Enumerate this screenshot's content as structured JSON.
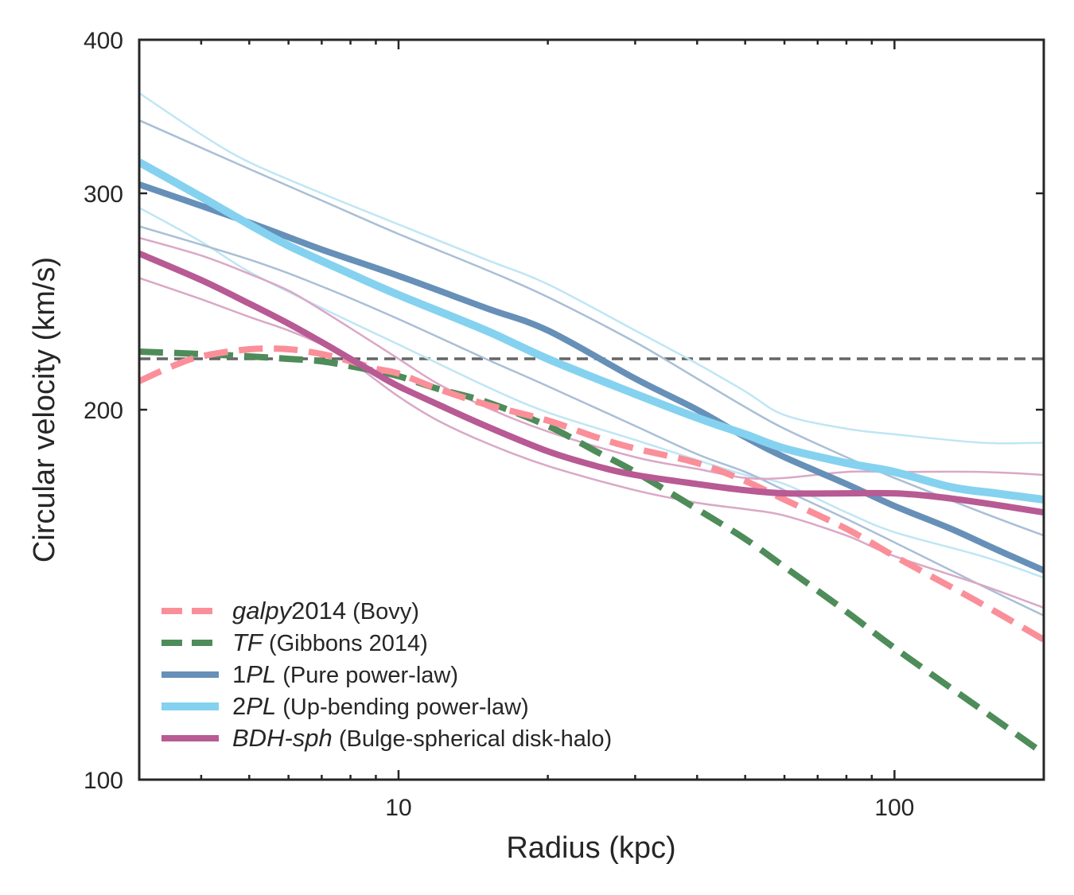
{
  "chart_data": {
    "type": "line",
    "title": "",
    "xlabel": "Radius (kpc)",
    "ylabel": "Circular velocity (km/s)",
    "xscale": "log",
    "yscale": "log",
    "xlim": [
      3,
      200
    ],
    "ylim": [
      100,
      400
    ],
    "x_ticks": [
      {
        "value": 10,
        "label": "10"
      },
      {
        "value": 100,
        "label": "100"
      }
    ],
    "y_ticks": [
      {
        "value": 100,
        "label": "100"
      },
      {
        "value": 200,
        "label": "200"
      },
      {
        "value": 300,
        "label": "300"
      },
      {
        "value": 400,
        "label": "400"
      }
    ],
    "grid": false,
    "legend_position": "lower-left",
    "reference_line": {
      "type": "horizontal",
      "y": 220,
      "color": "#666666",
      "style": "dashed"
    },
    "series": [
      {
        "name": "galpy2014",
        "legend_italic": "galpy",
        "legend_plain": "2014",
        "legend_note": "(Bovy)",
        "color": "#fa8f9a",
        "style": "dashed",
        "width": 8,
        "opacity": 1,
        "in_legend": true,
        "x": [
          3,
          3.5,
          4,
          5,
          6,
          7,
          8,
          9,
          10,
          12,
          15,
          20,
          25,
          30,
          40,
          50,
          60,
          80,
          100,
          120,
          150,
          200
        ],
        "y": [
          211,
          217,
          221,
          224,
          224,
          222,
          219,
          216,
          214,
          208,
          202,
          196,
          190,
          186,
          181,
          175,
          169,
          160,
          152,
          146,
          139,
          130
        ]
      },
      {
        "name": "TF",
        "legend_italic": "TF",
        "legend_plain": "",
        "legend_note": "(Gibbons 2014)",
        "color": "#4e8c5a",
        "style": "dashed",
        "width": 8,
        "opacity": 1,
        "in_legend": true,
        "x": [
          3,
          4,
          5,
          6,
          7,
          8,
          9,
          10,
          12,
          15,
          20,
          25,
          30,
          40,
          50,
          60,
          80,
          100,
          150,
          200
        ],
        "y": [
          223,
          222,
          221,
          220,
          219,
          217,
          215,
          213,
          208,
          203,
          194,
          185,
          178,
          166,
          157,
          149,
          137,
          128,
          114,
          105
        ]
      },
      {
        "name": "1PL",
        "legend_italic": "PL",
        "legend_plain": "1",
        "legend_note": "(Pure power-law)",
        "color": "#6690b8",
        "style": "solid",
        "width": 8,
        "opacity": 1,
        "in_legend": true,
        "x": [
          3,
          5,
          7,
          10,
          15,
          20,
          30,
          40,
          50,
          60,
          80,
          100,
          130,
          160,
          200
        ],
        "y": [
          305,
          284,
          270,
          257,
          242,
          232,
          212,
          200,
          190,
          183,
          174,
          167,
          160,
          154,
          148
        ]
      },
      {
        "name": "2PL",
        "legend_italic": "PL",
        "legend_plain": "2",
        "legend_note": "(Up-bending power-law)",
        "color": "#84d2ef",
        "style": "solid",
        "width": 10,
        "opacity": 1,
        "in_legend": true,
        "x": [
          3,
          4,
          5,
          6,
          8,
          10,
          15,
          20,
          30,
          40,
          50,
          60,
          80,
          100,
          130,
          160,
          200
        ],
        "y": [
          318,
          298,
          283,
          272,
          258,
          248,
          232,
          220,
          206,
          197,
          191,
          186,
          181,
          178,
          173,
          171,
          169
        ]
      },
      {
        "name": "BDH-sph",
        "legend_italic": "BDH-sph",
        "legend_plain": "",
        "legend_note": "(Bulge-spherical disk-halo)",
        "color": "#b85a94",
        "style": "solid",
        "width": 8,
        "opacity": 1,
        "in_legend": true,
        "x": [
          3,
          4,
          5,
          6,
          7,
          8,
          9,
          10,
          12,
          15,
          20,
          25,
          30,
          40,
          50,
          60,
          80,
          100,
          120,
          150,
          200
        ],
        "y": [
          268,
          255,
          244,
          235,
          227,
          220,
          214,
          209,
          202,
          194,
          185,
          180,
          177,
          174,
          172,
          171,
          171,
          171,
          170,
          168,
          165
        ]
      },
      {
        "name": "light-cyan-upper",
        "color": "#bfe6f4",
        "style": "solid",
        "width": 2.5,
        "opacity": 1,
        "in_legend": false,
        "x": [
          3,
          4,
          5,
          7,
          10,
          15,
          20,
          30,
          40,
          50,
          60,
          80,
          100,
          150,
          200
        ],
        "y": [
          362,
          335,
          318,
          300,
          283,
          265,
          253,
          232,
          218,
          207,
          198,
          193,
          191,
          188,
          188
        ]
      },
      {
        "name": "light-cyan-lower",
        "color": "#bfe6f4",
        "style": "solid",
        "width": 2.5,
        "opacity": 1,
        "in_legend": false,
        "x": [
          3,
          4,
          5,
          7,
          10,
          15,
          20,
          30,
          40,
          50,
          60,
          80,
          100,
          150,
          200
        ],
        "y": [
          292,
          274,
          259,
          242,
          226,
          209,
          199,
          189,
          182,
          177,
          174,
          165,
          159,
          152,
          146
        ]
      },
      {
        "name": "light-blue-upper",
        "color": "#a9bfd6",
        "style": "solid",
        "width": 2.5,
        "opacity": 1,
        "in_legend": false,
        "x": [
          3,
          5,
          7,
          10,
          15,
          20,
          30,
          40,
          50,
          60,
          80,
          100,
          150,
          200
        ],
        "y": [
          344,
          314,
          296,
          278,
          260,
          247,
          227,
          212,
          201,
          193,
          183,
          176,
          165,
          158
        ]
      },
      {
        "name": "light-blue-lower",
        "color": "#a9bfd6",
        "style": "solid",
        "width": 2.5,
        "opacity": 1,
        "in_legend": false,
        "x": [
          3,
          5,
          7,
          10,
          15,
          20,
          30,
          40,
          50,
          60,
          80,
          100,
          130,
          160,
          200
        ],
        "y": [
          282,
          265,
          252,
          237,
          220,
          209,
          194,
          184,
          178,
          172,
          163,
          156,
          148,
          142,
          136
        ]
      },
      {
        "name": "light-pink-upper",
        "color": "#daa8c6",
        "style": "solid",
        "width": 2.5,
        "opacity": 1,
        "in_legend": false,
        "x": [
          3,
          4,
          5,
          6,
          7,
          8,
          10,
          12,
          15,
          20,
          30,
          40,
          50,
          60,
          80,
          100,
          150,
          200
        ],
        "y": [
          276,
          267,
          258,
          250,
          241,
          233,
          220,
          210,
          201,
          192,
          183,
          179,
          176,
          176,
          178,
          178,
          178,
          177
        ]
      },
      {
        "name": "light-pink-lower",
        "color": "#daa8c6",
        "style": "solid",
        "width": 2.5,
        "opacity": 1,
        "in_legend": false,
        "x": [
          3,
          4,
          5,
          6,
          7,
          8,
          10,
          12,
          15,
          20,
          30,
          40,
          50,
          60,
          80,
          100,
          150,
          200
        ],
        "y": [
          256,
          246,
          238,
          232,
          226,
          219,
          205,
          196,
          188,
          180,
          172,
          168,
          166,
          164,
          158,
          152,
          144,
          138
        ]
      }
    ]
  }
}
